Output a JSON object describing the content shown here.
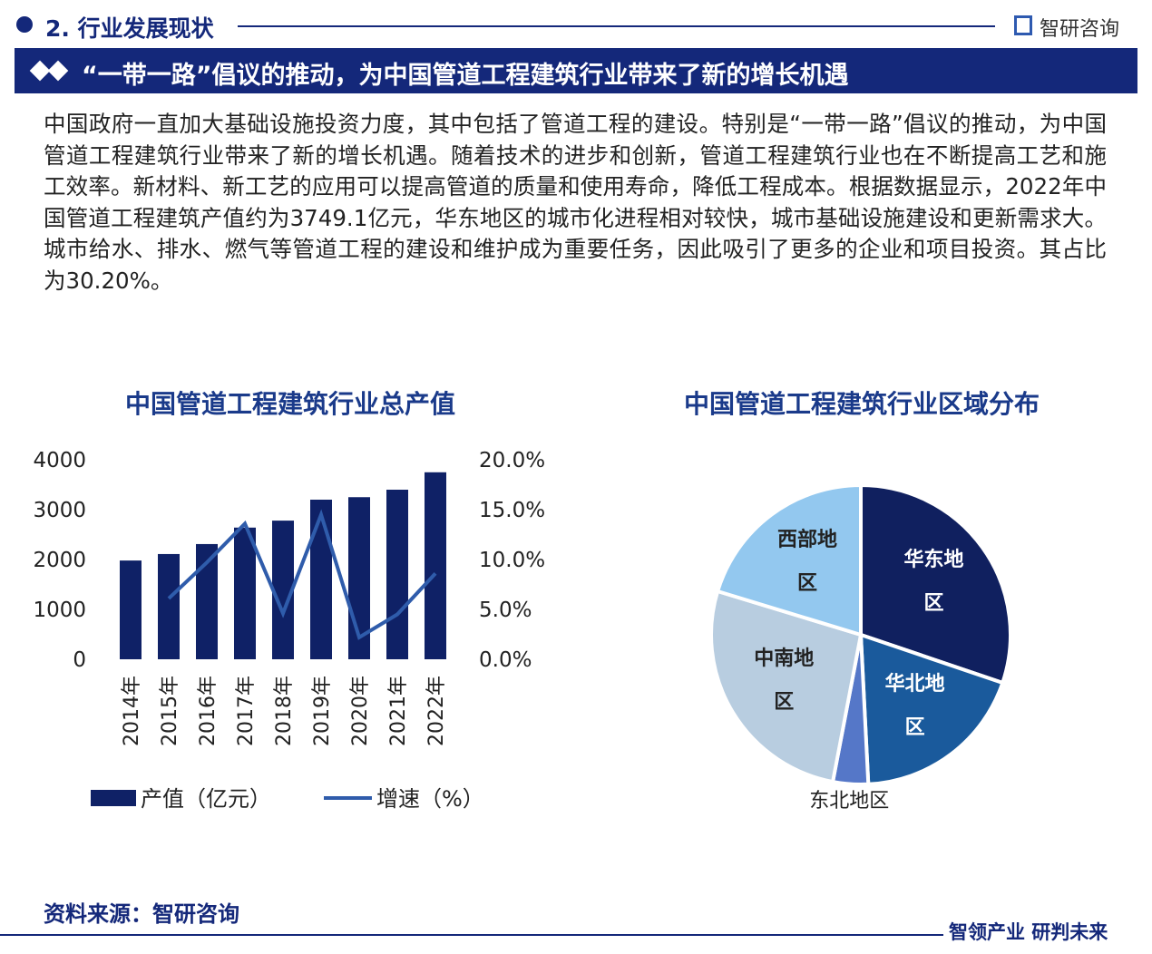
{
  "header": {
    "section": "2. 行业发展现状",
    "logo": "智研咨询",
    "banner": "“一带一路”倡议的推动，为中国管道工程建筑行业带来了新的增长机遇"
  },
  "body": "中国政府一直加大基础设施投资力度，其中包括了管道工程的建设。特别是“一带一路”倡议的推动，为中国管道工程建筑行业带来了新的增长机遇。随着技术的进步和创新，管道工程建筑行业也在不断提高工艺和施工效率。新材料、新工艺的应用可以提高管道的质量和使用寿命，降低工程成本。根据数据显示，2022年中国管道工程建筑产值约为3749.1亿元，华东地区的城市化进程相对较快，城市基础设施建设和更新需求大。城市给水、排水、燃气等管道工程的建设和维护成为重要任务，因此吸引了更多的企业和项目投资。其占比为30.20%。",
  "chart_data": [
    {
      "type": "bar",
      "title": "中国管道工程建筑行业总产值",
      "categories": [
        "2014年",
        "2015年",
        "2016年",
        "2017年",
        "2018年",
        "2019年",
        "2020年",
        "2021年",
        "2022年"
      ],
      "series": [
        {
          "name": "产值（亿元）",
          "type": "bar",
          "color": "#0f2166",
          "values": [
            1980,
            2110,
            2310,
            2640,
            2780,
            3200,
            3250,
            3400,
            3749.1
          ]
        },
        {
          "name": "增速（%）",
          "type": "line",
          "axis": "y2",
          "color": "#2f5cab",
          "values": [
            null,
            6.1,
            9.7,
            13.6,
            4.6,
            14.5,
            2.2,
            4.5,
            8.6
          ]
        }
      ],
      "ylim": [
        0,
        4000
      ],
      "yticks": [
        0,
        1000,
        2000,
        3000,
        4000
      ],
      "y2lim": [
        0,
        20
      ],
      "y2ticks": [
        {
          "value": 0,
          "label": "0.0%"
        },
        {
          "value": 5,
          "label": "5.0%"
        },
        {
          "value": 10,
          "label": "10.0%"
        },
        {
          "value": 15,
          "label": "15.0%"
        },
        {
          "value": 20,
          "label": "20.0%"
        }
      ]
    },
    {
      "type": "pie",
      "title": "中国管道工程建筑行业区域分布",
      "categories": [
        "华东地区",
        "华北地区",
        "东北地区",
        "中南地区",
        "西部地区"
      ],
      "values": [
        30.2,
        19,
        3.8,
        26.7,
        20.3
      ],
      "colors": [
        "#10205f",
        "#1a5a9c",
        "#5577c8",
        "#b8cde0",
        "#93c8ef"
      ]
    }
  ],
  "source": "资料来源：智研咨询",
  "footer": "智领产业 研判未来"
}
